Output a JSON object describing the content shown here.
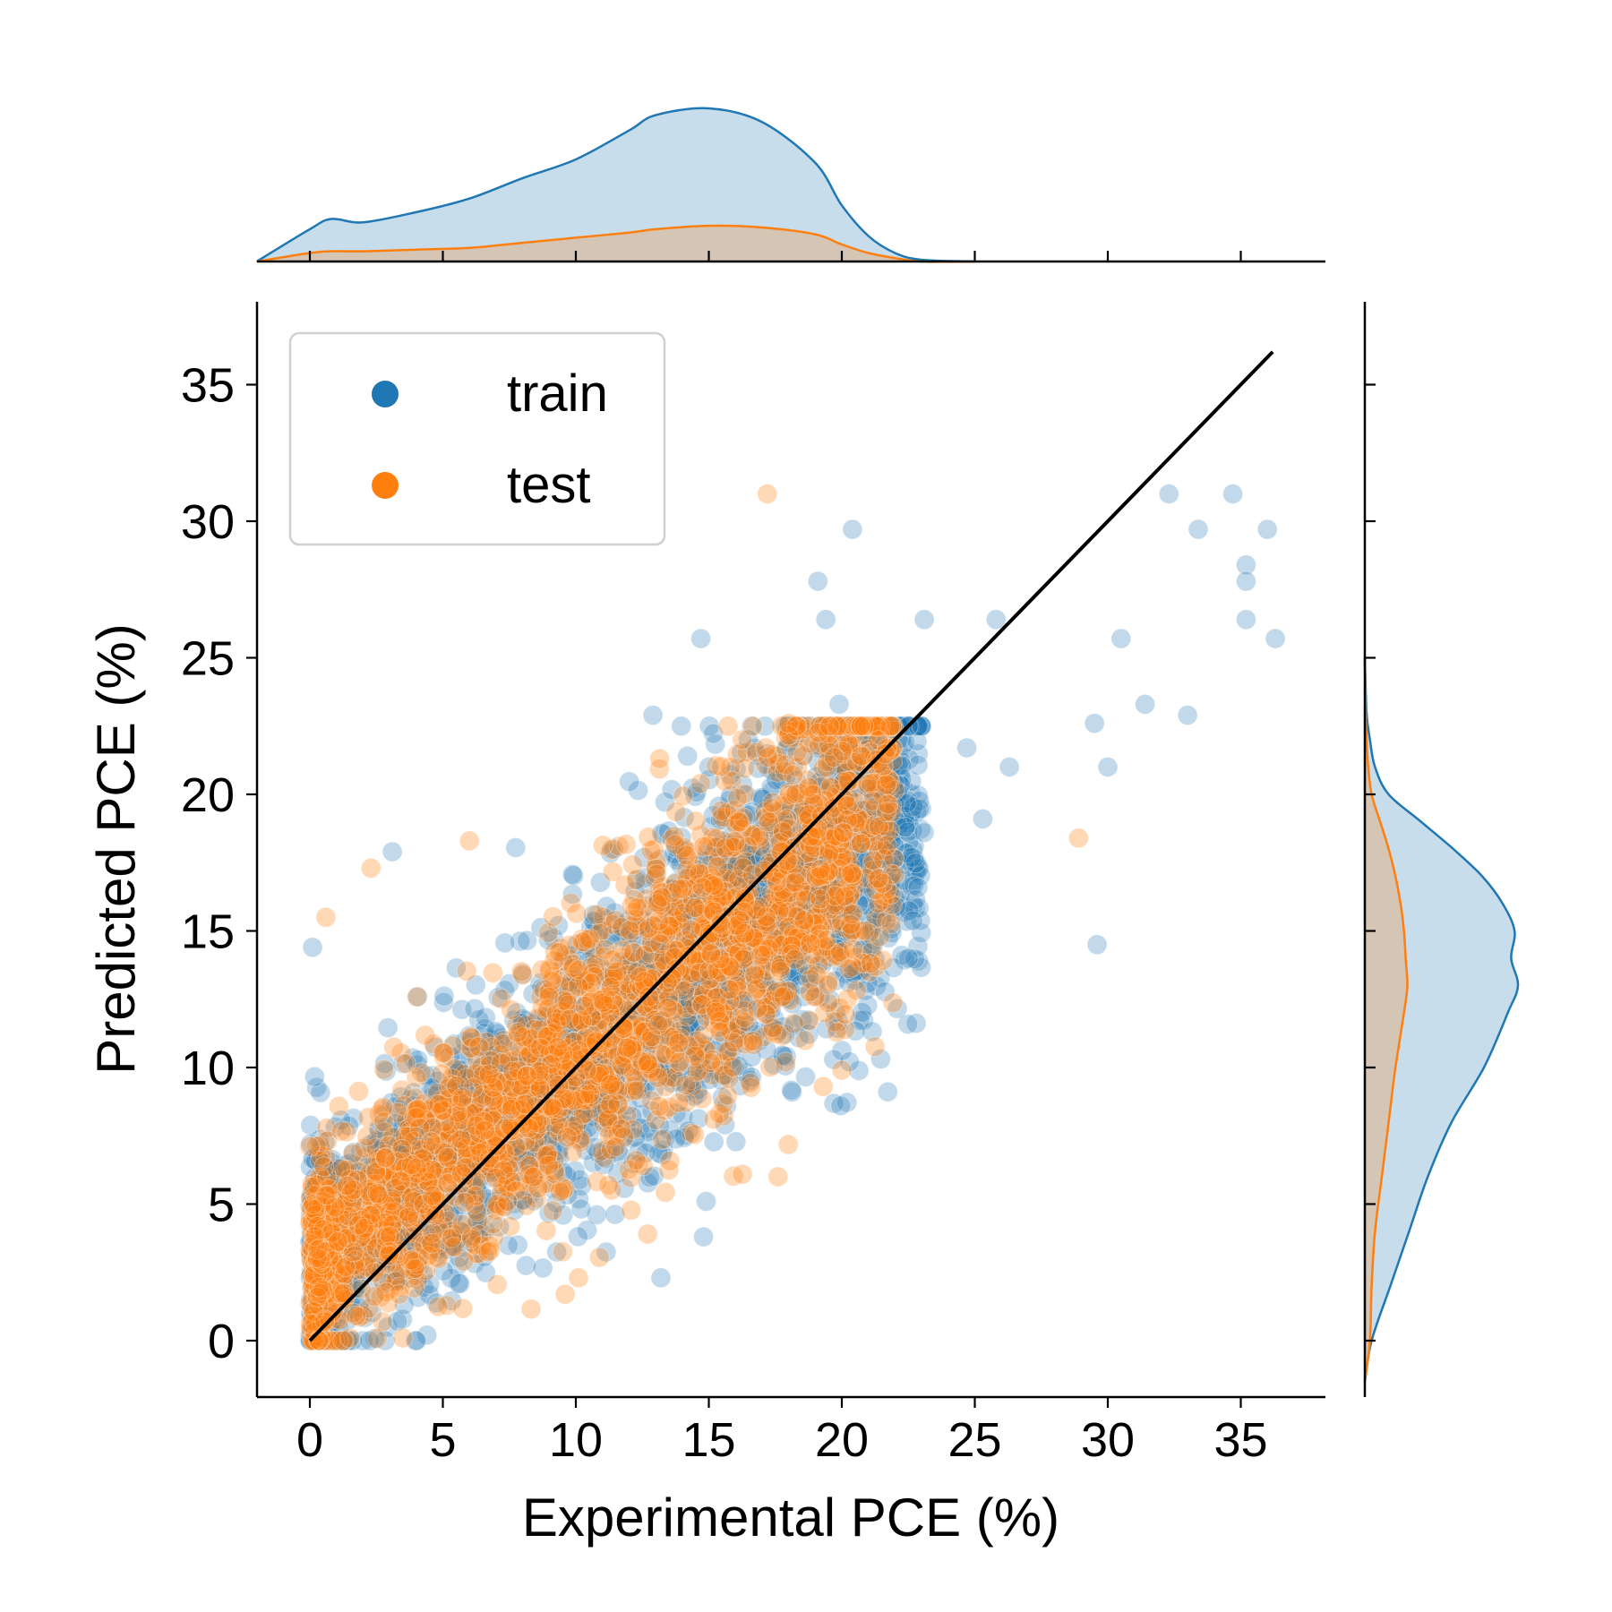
{
  "chart_data": {
    "type": "scatter",
    "xlabel": "Experimental PCE (%)",
    "ylabel": "Predicted PCE (%)",
    "xlim": [
      -2,
      38.3
    ],
    "ylim": [
      -2,
      38.3
    ],
    "xticks": [
      "0",
      "5",
      "10",
      "15",
      "20",
      "25",
      "30",
      "35"
    ],
    "yticks": [
      "0",
      "5",
      "10",
      "15",
      "20",
      "25",
      "30",
      "35"
    ],
    "identity_line": {
      "from": [
        0,
        0
      ],
      "to": [
        36.2,
        36.2
      ],
      "color": "#000000"
    },
    "legend": {
      "position": "top-left",
      "entries": [
        {
          "label": "train",
          "color": "#1f77b4"
        },
        {
          "label": "test",
          "color": "#ff7f0e"
        }
      ]
    },
    "series": [
      {
        "name": "train",
        "color": "#1f77b4",
        "opacity": 0.28,
        "points_explicit": [
          [
            32.3,
            31.0
          ],
          [
            34.7,
            31.0
          ],
          [
            33.4,
            29.7
          ],
          [
            36.0,
            29.7
          ],
          [
            35.2,
            28.4
          ],
          [
            35.2,
            27.8
          ],
          [
            35.2,
            26.4
          ],
          [
            36.3,
            25.7
          ],
          [
            30.5,
            25.7
          ],
          [
            31.4,
            23.3
          ],
          [
            33.0,
            22.9
          ],
          [
            29.5,
            22.6
          ],
          [
            30.0,
            21.0
          ],
          [
            29.6,
            14.5
          ],
          [
            20.4,
            29.7
          ],
          [
            19.1,
            27.8
          ],
          [
            19.4,
            26.4
          ],
          [
            23.1,
            26.4
          ],
          [
            25.8,
            26.4
          ],
          [
            14.7,
            25.7
          ],
          [
            12.9,
            22.9
          ],
          [
            19.9,
            23.3
          ],
          [
            14.2,
            21.4
          ],
          [
            15.0,
            21.0
          ],
          [
            16.7,
            21.7
          ],
          [
            24.7,
            21.7
          ],
          [
            26.3,
            21.0
          ],
          [
            25.3,
            19.1
          ],
          [
            23.1,
            18.6
          ],
          [
            22.5,
            14.0
          ],
          [
            3.1,
            17.9
          ],
          [
            0.1,
            14.4
          ],
          [
            14.9,
            5.1
          ],
          [
            14.8,
            3.8
          ],
          [
            13.2,
            2.3
          ]
        ],
        "bulk": {
          "count": 2600,
          "x_range": [
            0,
            23
          ],
          "spread": 3.2,
          "slope": 0.78,
          "intercept": 2.5,
          "seed": 11
        }
      },
      {
        "name": "test",
        "color": "#ff7f0e",
        "opacity": 0.3,
        "points_explicit": [
          [
            17.2,
            31.0
          ],
          [
            28.9,
            18.4
          ],
          [
            18.0,
            22.6
          ],
          [
            6.0,
            18.3
          ],
          [
            2.3,
            17.3
          ],
          [
            0.6,
            15.5
          ],
          [
            20.0,
            9.9
          ],
          [
            19.3,
            9.3
          ],
          [
            9.6,
            1.7
          ],
          [
            3.5,
            0.1
          ],
          [
            1.5,
            0.1
          ],
          [
            10.1,
            2.3
          ],
          [
            17.6,
            6.0
          ],
          [
            12.7,
            3.9
          ]
        ],
        "bulk": {
          "count": 2400,
          "x_range": [
            0,
            22
          ],
          "spread": 3.0,
          "slope": 0.78,
          "intercept": 2.6,
          "seed": 29
        }
      }
    ],
    "marginal_x": {
      "type": "kde",
      "x": [
        -2,
        0,
        0.8,
        2,
        4,
        6,
        8,
        10,
        12,
        13,
        15,
        17,
        19,
        20,
        21,
        22,
        23,
        25
      ],
      "train_density": [
        0.0,
        0.19,
        0.25,
        0.23,
        0.29,
        0.37,
        0.49,
        0.6,
        0.77,
        0.86,
        0.9,
        0.82,
        0.58,
        0.33,
        0.15,
        0.05,
        0.01,
        0.0
      ],
      "test_density": [
        0.0,
        0.05,
        0.06,
        0.06,
        0.07,
        0.08,
        0.11,
        0.14,
        0.17,
        0.19,
        0.21,
        0.2,
        0.16,
        0.1,
        0.05,
        0.02,
        0.0,
        0.0
      ]
    },
    "marginal_y": {
      "type": "kde",
      "y": [
        -1.5,
        0,
        2,
        4,
        6,
        8,
        10,
        12,
        13,
        14,
        15,
        16,
        17,
        18,
        19,
        20,
        21,
        22,
        23,
        25
      ],
      "train_density": [
        0.0,
        0.04,
        0.15,
        0.26,
        0.37,
        0.51,
        0.7,
        0.84,
        0.9,
        0.86,
        0.88,
        0.81,
        0.69,
        0.52,
        0.33,
        0.14,
        0.06,
        0.03,
        0.01,
        0.0
      ],
      "test_density": [
        0.0,
        0.03,
        0.04,
        0.06,
        0.1,
        0.14,
        0.18,
        0.23,
        0.25,
        0.24,
        0.23,
        0.21,
        0.18,
        0.14,
        0.09,
        0.04,
        0.02,
        0.01,
        0.005,
        0.0
      ]
    }
  }
}
